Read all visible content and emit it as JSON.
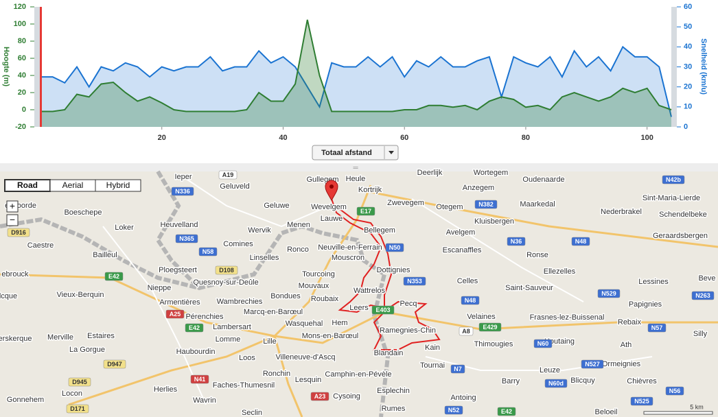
{
  "chart_data": {
    "type": "area",
    "ylabel": "Hoogte (m)",
    "y2label": "Snelheid (km/u)",
    "x": [
      0,
      2,
      4,
      6,
      8,
      10,
      12,
      14,
      16,
      18,
      20,
      22,
      24,
      26,
      28,
      30,
      32,
      34,
      36,
      38,
      40,
      42,
      44,
      46,
      48,
      50,
      52,
      54,
      56,
      58,
      60,
      62,
      64,
      66,
      68,
      70,
      72,
      74,
      76,
      78,
      80,
      82,
      84,
      86,
      88,
      90,
      92,
      94,
      96,
      98,
      100,
      102,
      104
    ],
    "series": [
      {
        "color": "#2e7d32",
        "values": [
          -2,
          -2,
          0,
          18,
          15,
          30,
          32,
          20,
          10,
          15,
          8,
          0,
          -2,
          -2,
          -2,
          -2,
          -2,
          0,
          20,
          10,
          10,
          30,
          105,
          40,
          -2,
          -2,
          -2,
          -2,
          -2,
          -2,
          0,
          0,
          5,
          5,
          3,
          5,
          0,
          10,
          15,
          12,
          3,
          5,
          0,
          15,
          20,
          15,
          10,
          15,
          25,
          20,
          25,
          5,
          0
        ]
      },
      {
        "color": "#1a73d1",
        "axis": "y2",
        "values": [
          25,
          25,
          22,
          30,
          20,
          30,
          28,
          32,
          30,
          25,
          30,
          28,
          30,
          30,
          35,
          28,
          30,
          30,
          38,
          32,
          35,
          30,
          20,
          10,
          32,
          30,
          30,
          35,
          30,
          35,
          25,
          33,
          30,
          35,
          30,
          30,
          33,
          35,
          15,
          35,
          32,
          30,
          35,
          25,
          38,
          30,
          35,
          28,
          40,
          35,
          35,
          30,
          5
        ]
      }
    ],
    "xlim": [
      0,
      104
    ],
    "xticks": [
      20,
      40,
      60,
      80,
      100
    ],
    "ylim": [
      -20,
      120
    ],
    "yticks": [
      -20,
      0,
      20,
      40,
      60,
      80,
      100,
      120
    ],
    "y2lim": [
      0,
      60
    ],
    "y2ticks": [
      0,
      10,
      20,
      30,
      40,
      50,
      60
    ],
    "grid": false
  },
  "ui": {
    "dropdown": "Totaal afstand"
  },
  "map": {
    "buttons": [
      "Road",
      "Aerial",
      "Hybrid"
    ],
    "zoom": [
      "+",
      "−"
    ],
    "places": [
      "Ieper",
      "Geluveld",
      "Gullegem",
      "Heule",
      "Kortrijk",
      "Deerlijk",
      "Wortegem",
      "Oudenaarde",
      "Anzegem",
      "Zwevegem",
      "Geluwe",
      "Wevelgem",
      "Lauwe",
      "Otegem",
      "Maarkedal",
      "Sint-Maria-Lierde",
      "Nederbrakel",
      "Schendelbeke",
      "envoorde",
      "Boeschepe",
      "Heuvelland",
      "Wervik",
      "Menen",
      "Bellegem",
      "Kluisbergen",
      "Loker",
      "Avelgem",
      "Geraardsbergen",
      "Caestre",
      "Comines",
      "Ronco",
      "Neuville-en-Ferrain",
      "Escanaffles",
      "Bailleul",
      "Linselles",
      "Mouscron",
      "Ronse",
      "Dottignies",
      "Ploegsteert",
      "ebrouck",
      "Nieppe",
      "Quesnoy-sur-Deûle",
      "Tourcoing",
      "Ellezelles",
      "Celles",
      "Lessines",
      "Vieux-Berquin",
      "Mouvaux",
      "Wattrelos",
      "Saint-Sauveur",
      "Armentières",
      "Wambrechies",
      "Bondues",
      "Roubaix",
      "Pecq",
      "Papignies",
      "lcque",
      "Leers",
      "Marcq-en-Barœul",
      "Pérenchies",
      "Velaines",
      "Frasnes-lez-Buissenal",
      "Rebaix",
      "Lambersart",
      "Wasquehal",
      "Hem",
      "Ramegnies-Chin",
      "Merville",
      "Estaires",
      "Lomme",
      "Lille",
      "Mons-en-Barœul",
      "Thimougies",
      "Houtaing",
      "Ath",
      "Silly",
      "erskerque",
      "La Gorgue",
      "Haubourdin",
      "Loos",
      "Villeneuve-d'Ascq",
      "Blandain",
      "Kain",
      "Tournai",
      "Ormeignies",
      "Ronchin",
      "Lesquin",
      "Camphin-en-Pévèle",
      "Leuze",
      "Blicquy",
      "Chièvres",
      "Gonnehem",
      "Locon",
      "Herlies",
      "Faches-Thumesnil",
      "Esplechin",
      "Barry",
      "Wavrin",
      "Cysoing",
      "Antoing",
      "Rumes",
      "Seclin",
      "Beloeil",
      "Beve"
    ],
    "roads": [
      {
        "label": "A19",
        "color": "white"
      },
      {
        "label": "N336",
        "color": "blue"
      },
      {
        "label": "D916",
        "color": "yellow"
      },
      {
        "label": "N365",
        "color": "blue"
      },
      {
        "label": "N58",
        "color": "blue"
      },
      {
        "label": "D108",
        "color": "yellow"
      },
      {
        "label": "E42",
        "color": "green"
      },
      {
        "label": "E17",
        "color": "green"
      },
      {
        "label": "N50",
        "color": "blue"
      },
      {
        "label": "N353",
        "color": "blue"
      },
      {
        "label": "N382",
        "color": "blue"
      },
      {
        "label": "N36",
        "color": "blue"
      },
      {
        "label": "N48",
        "color": "blue"
      },
      {
        "label": "N42b",
        "color": "blue"
      },
      {
        "label": "N48",
        "color": "blue"
      },
      {
        "label": "N529",
        "color": "blue"
      },
      {
        "label": "N263",
        "color": "blue"
      },
      {
        "label": "E403",
        "color": "green"
      },
      {
        "label": "A25",
        "color": "red"
      },
      {
        "label": "E42",
        "color": "green"
      },
      {
        "label": "A8",
        "color": "white"
      },
      {
        "label": "E429",
        "color": "green"
      },
      {
        "label": "N57",
        "color": "blue"
      },
      {
        "label": "N60",
        "color": "blue"
      },
      {
        "label": "D947",
        "color": "yellow"
      },
      {
        "label": "N527",
        "color": "blue"
      },
      {
        "label": "N7",
        "color": "blue"
      },
      {
        "label": "N41",
        "color": "red"
      },
      {
        "label": "D945",
        "color": "yellow"
      },
      {
        "label": "N60d",
        "color": "blue"
      },
      {
        "label": "N56",
        "color": "blue"
      },
      {
        "label": "A23",
        "color": "red"
      },
      {
        "label": "N525",
        "color": "blue"
      },
      {
        "label": "D171",
        "color": "yellow"
      },
      {
        "label": "N52",
        "color": "blue"
      },
      {
        "label": "E42",
        "color": "green"
      }
    ],
    "scale": "5 km"
  }
}
